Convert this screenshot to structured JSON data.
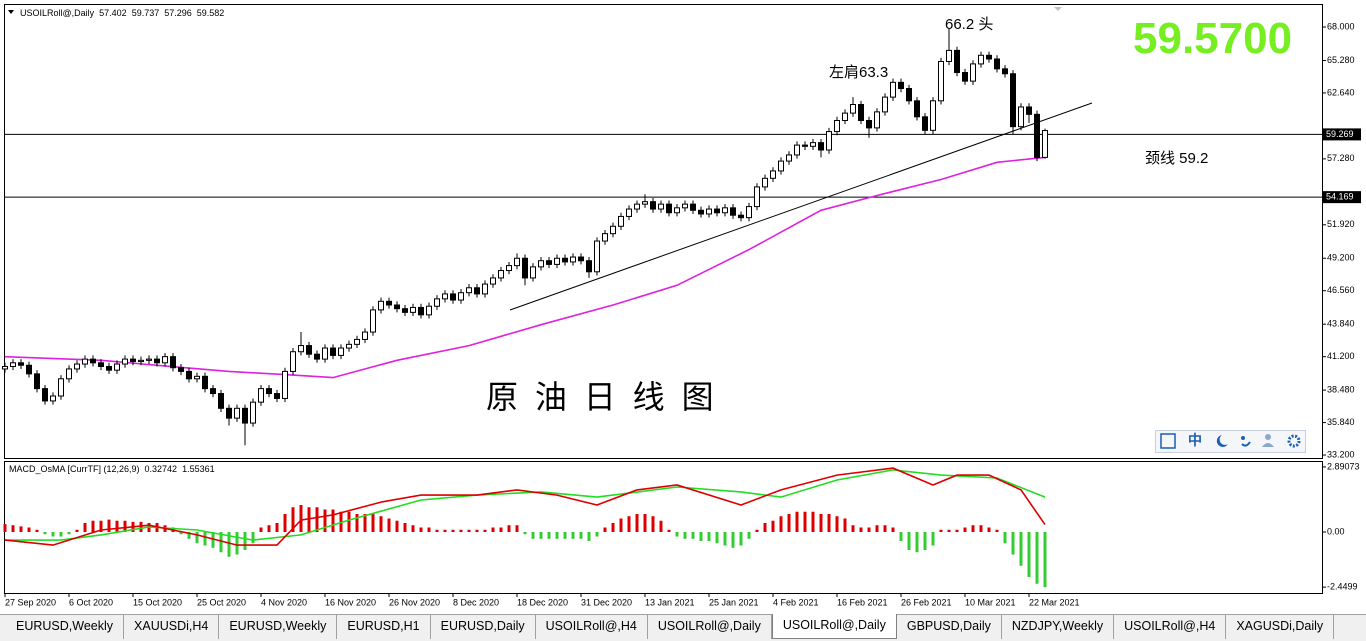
{
  "chart_data": [
    {
      "type": "candlestick",
      "symbol_label": "USOILRoll@,Daily",
      "bid": "59.5700",
      "annotations": [
        "66.2 头",
        "左肩63.3",
        "颈线 59.2",
        "原 油 日 线 图"
      ],
      "toolbar_lang": "中",
      "up_color": "#ffffff",
      "down_color": "#000000",
      "wick_color": "#000000",
      "open": [
        40.2,
        40.4,
        40.7,
        40.5,
        39.8,
        38.6,
        37.6,
        38.0,
        39.4,
        40.2,
        40.6,
        41.0,
        40.7,
        40.4,
        40.1,
        40.6,
        41.0,
        40.8,
        40.9,
        41.0,
        40.7,
        41.2,
        40.3,
        40.0,
        39.4,
        39.6,
        38.6,
        38.2,
        37.0,
        36.2,
        37.0,
        35.8,
        37.5,
        38.6,
        38.2,
        37.8,
        40.0,
        41.6,
        42.1,
        41.4,
        41.0,
        41.9,
        41.3,
        41.9,
        42.2,
        42.6,
        43.2,
        45.0,
        45.7,
        45.4,
        45.1,
        44.8,
        45.2,
        44.6,
        45.3,
        45.9,
        46.3,
        45.8,
        46.4,
        46.8,
        46.3,
        47.1,
        47.6,
        48.2,
        48.6,
        49.2,
        47.6,
        48.5,
        49.0,
        48.7,
        49.2,
        48.9,
        49.3,
        49.0,
        48.1,
        50.6,
        51.2,
        51.8,
        52.6,
        53.2,
        53.6,
        53.8,
        53.2,
        53.6,
        52.9,
        53.3,
        53.6,
        53.1,
        52.8,
        53.2,
        52.9,
        53.3,
        52.7,
        52.5,
        53.4,
        55.0,
        55.7,
        56.3,
        57.1,
        57.6,
        58.4,
        58.3,
        58.6,
        58.0,
        59.5,
        60.4,
        61.0,
        61.7,
        60.4,
        59.8,
        61.1,
        62.3,
        63.5,
        63.0,
        62.0,
        60.7,
        59.6,
        62.0,
        65.2,
        66.1,
        64.3,
        63.6,
        65.0,
        65.7,
        65.4,
        64.6,
        64.2,
        59.9,
        61.5,
        60.9,
        57.402
      ],
      "high": [
        40.7,
        41.0,
        41.0,
        40.8,
        40.1,
        38.9,
        38.3,
        39.7,
        40.5,
        40.9,
        41.3,
        41.3,
        41.0,
        40.7,
        40.9,
        41.3,
        41.3,
        41.2,
        41.3,
        41.3,
        41.5,
        41.5,
        40.6,
        40.3,
        39.9,
        39.9,
        38.9,
        38.5,
        37.3,
        37.3,
        37.3,
        37.8,
        38.9,
        38.9,
        38.5,
        40.3,
        41.9,
        43.2,
        42.4,
        41.7,
        42.2,
        42.2,
        42.2,
        42.5,
        42.9,
        43.5,
        45.3,
        46.0,
        46.0,
        45.7,
        45.4,
        45.5,
        45.5,
        45.6,
        46.2,
        46.6,
        46.6,
        46.7,
        47.1,
        47.1,
        47.4,
        47.9,
        48.5,
        48.9,
        49.6,
        49.5,
        48.8,
        49.3,
        49.3,
        49.5,
        49.5,
        49.6,
        49.6,
        49.3,
        50.9,
        51.5,
        52.1,
        52.9,
        53.5,
        53.9,
        54.4,
        54.1,
        53.9,
        53.9,
        53.6,
        53.9,
        53.9,
        53.4,
        53.5,
        53.5,
        53.6,
        53.6,
        53.0,
        53.7,
        55.3,
        56.0,
        56.6,
        57.4,
        57.9,
        58.7,
        58.7,
        58.9,
        58.9,
        59.8,
        60.7,
        61.3,
        62.3,
        62.0,
        60.7,
        61.4,
        62.6,
        63.8,
        63.8,
        63.3,
        62.3,
        61.0,
        62.3,
        65.5,
        67.9,
        66.4,
        64.6,
        65.3,
        66.0,
        66.0,
        65.7,
        64.9,
        64.5,
        61.8,
        61.8,
        61.2,
        59.737
      ],
      "low": [
        39.9,
        40.1,
        40.2,
        39.5,
        38.3,
        37.3,
        37.3,
        37.7,
        39.1,
        39.9,
        40.3,
        40.4,
        40.1,
        39.8,
        39.8,
        40.3,
        40.5,
        40.5,
        40.6,
        40.4,
        40.4,
        40.0,
        39.7,
        39.1,
        39.1,
        38.3,
        37.9,
        36.7,
        35.6,
        35.9,
        34.0,
        35.5,
        37.2,
        37.9,
        37.5,
        37.5,
        39.7,
        41.3,
        41.1,
        40.7,
        40.7,
        41.0,
        41.0,
        41.6,
        41.9,
        42.3,
        42.9,
        44.7,
        45.1,
        44.8,
        44.5,
        44.5,
        44.3,
        44.3,
        45.0,
        45.6,
        45.5,
        45.5,
        46.1,
        46.0,
        46.0,
        46.8,
        47.3,
        47.9,
        48.3,
        47.0,
        47.3,
        48.2,
        48.4,
        48.4,
        48.6,
        48.6,
        48.7,
        47.6,
        47.8,
        50.3,
        50.9,
        51.5,
        52.3,
        52.9,
        53.3,
        52.9,
        52.9,
        52.6,
        52.6,
        53.0,
        52.8,
        52.5,
        52.5,
        52.6,
        52.6,
        52.4,
        52.2,
        52.2,
        53.1,
        54.7,
        55.4,
        56.0,
        56.8,
        57.3,
        58.0,
        58.0,
        57.4,
        57.7,
        59.2,
        60.1,
        60.7,
        60.1,
        59.0,
        59.5,
        60.8,
        62.0,
        62.7,
        61.7,
        60.4,
        59.3,
        59.3,
        61.7,
        64.9,
        64.0,
        63.3,
        63.3,
        64.7,
        65.1,
        64.3,
        63.9,
        59.3,
        59.6,
        60.2,
        57.1,
        57.296
      ],
      "close": [
        40.4,
        40.7,
        40.5,
        39.8,
        38.6,
        37.6,
        38.0,
        39.4,
        40.2,
        40.6,
        41.0,
        40.7,
        40.4,
        40.1,
        40.6,
        41.0,
        40.8,
        40.9,
        41.0,
        40.7,
        41.2,
        40.3,
        40.0,
        39.4,
        39.6,
        38.6,
        38.2,
        37.0,
        36.2,
        37.0,
        35.8,
        37.5,
        38.6,
        38.2,
        37.8,
        40.0,
        41.6,
        42.1,
        41.4,
        41.0,
        41.9,
        41.3,
        41.9,
        42.2,
        42.6,
        43.2,
        45.0,
        45.7,
        45.4,
        45.1,
        44.8,
        45.2,
        44.6,
        45.3,
        45.9,
        46.3,
        45.8,
        46.4,
        46.8,
        46.3,
        47.1,
        47.6,
        48.2,
        48.6,
        49.2,
        47.6,
        48.5,
        49.0,
        48.7,
        49.2,
        48.9,
        49.3,
        49.0,
        48.1,
        50.6,
        51.2,
        51.8,
        52.6,
        53.2,
        53.6,
        53.8,
        53.2,
        53.6,
        52.9,
        53.3,
        53.6,
        53.1,
        52.8,
        53.2,
        52.9,
        53.3,
        52.7,
        52.5,
        53.4,
        55.0,
        55.7,
        56.3,
        57.1,
        57.6,
        58.4,
        58.3,
        58.6,
        58.0,
        59.5,
        60.4,
        61.0,
        61.7,
        60.4,
        59.8,
        61.1,
        62.3,
        63.5,
        63.0,
        62.0,
        60.7,
        59.6,
        62.0,
        65.2,
        66.1,
        64.3,
        63.6,
        65.0,
        65.7,
        65.4,
        64.6,
        64.2,
        59.9,
        61.5,
        60.9,
        57.4,
        59.582
      ],
      "ma": {
        "color": "#e020e0",
        "x": [
          0,
          12,
          19,
          28,
          36,
          41,
          49,
          58,
          67,
          76,
          84,
          93,
          102,
          109,
          117,
          124,
          130
        ],
        "values": [
          41.2,
          40.9,
          40.5,
          40.0,
          39.7,
          39.5,
          40.9,
          42.1,
          43.8,
          45.4,
          47.0,
          49.9,
          53.1,
          54.3,
          55.6,
          57.0,
          57.4
        ]
      },
      "hlines": [
        59.269,
        54.169
      ],
      "xlim": [
        -0.625,
        164.625
      ],
      "xticks": [
        {
          "value": 0,
          "label": "27 Sep 2020"
        },
        {
          "value": 8,
          "label": "6 Oct 2020"
        },
        {
          "value": 16,
          "label": "15 Oct 2020"
        },
        {
          "value": 24,
          "label": "25 Oct 2020"
        },
        {
          "value": 32,
          "label": "4 Nov 2020"
        },
        {
          "value": 40,
          "label": "16 Nov 2020"
        },
        {
          "value": 48,
          "label": "26 Nov 2020"
        },
        {
          "value": 56,
          "label": "8 Dec 2020"
        },
        {
          "value": 64,
          "label": "18 Dec 2020"
        },
        {
          "value": 72,
          "label": "31 Dec 2020"
        },
        {
          "value": 80,
          "label": "13 Jan 2021"
        },
        {
          "value": 88,
          "label": "25 Jan 2021"
        },
        {
          "value": 96,
          "label": "4 Feb 2021"
        },
        {
          "value": 104,
          "label": "16 Feb 2021"
        },
        {
          "value": 112,
          "label": "26 Feb 2021"
        },
        {
          "value": 120,
          "label": "10 Mar 2021"
        },
        {
          "value": 128,
          "label": "22 Mar 2021"
        }
      ],
      "ylim": [
        32.96,
        69.79
      ],
      "yticks": [
        {
          "value": 68,
          "label": "68.000"
        },
        {
          "value": 65.28,
          "label": "65.280"
        },
        {
          "value": 62.64,
          "label": "62.640"
        },
        {
          "value": 57.28,
          "label": "57.280"
        },
        {
          "value": 51.92,
          "label": "51.920"
        },
        {
          "value": 49.2,
          "label": "49.200"
        },
        {
          "value": 46.56,
          "label": "46.560"
        },
        {
          "value": 43.84,
          "label": "43.840"
        },
        {
          "value": 41.2,
          "label": "41.200"
        },
        {
          "value": 38.48,
          "label": "38.480"
        },
        {
          "value": 35.84,
          "label": "35.840"
        },
        {
          "value": 33.2,
          "label": "33.200"
        }
      ]
    },
    {
      "type": "macd",
      "title": "MACD_OsMA [CurrTF] (12,26,9)",
      "readout": [
        0.32742,
        1.55361
      ],
      "pos_color": "#dd0000",
      "neg_color": "#33cc33",
      "histogram": [
        0.35,
        0.3,
        0.25,
        0.2,
        0.1,
        -0.1,
        -0.2,
        -0.2,
        -0.1,
        0.1,
        0.4,
        0.5,
        0.5,
        0.55,
        0.5,
        0.5,
        0.45,
        0.45,
        0.4,
        0.4,
        0.3,
        0.2,
        -0.1,
        -0.3,
        -0.5,
        -0.6,
        -0.7,
        -0.9,
        -1.1,
        -1.0,
        -0.8,
        -0.5,
        0.2,
        0.3,
        0.4,
        0.8,
        1.1,
        1.2,
        1.1,
        1.1,
        1.0,
        1.0,
        0.9,
        0.9,
        0.8,
        0.8,
        0.8,
        0.7,
        0.6,
        0.5,
        0.4,
        0.3,
        0.2,
        0.2,
        0.1,
        0.1,
        0.1,
        0.1,
        0.1,
        0.1,
        0.1,
        0.2,
        0.2,
        0.3,
        0.3,
        -0.1,
        -0.3,
        -0.3,
        -0.3,
        -0.3,
        -0.3,
        -0.3,
        -0.3,
        -0.4,
        -0.2,
        0.2,
        0.4,
        0.6,
        0.7,
        0.8,
        0.8,
        0.7,
        0.5,
        0.1,
        -0.2,
        -0.3,
        -0.3,
        -0.4,
        -0.4,
        -0.5,
        -0.6,
        -0.7,
        -0.6,
        -0.3,
        0.1,
        0.4,
        0.5,
        0.7,
        0.8,
        0.9,
        0.9,
        0.9,
        0.8,
        0.8,
        0.7,
        0.6,
        0.3,
        0.2,
        0.2,
        0.3,
        0.3,
        0.2,
        -0.4,
        -0.8,
        -0.9,
        -0.8,
        -0.6,
        0.1,
        0.1,
        0.1,
        0.2,
        0.3,
        0.3,
        0.2,
        0.1,
        -0.5,
        -1.0,
        -1.5,
        -2.0,
        -2.3,
        -2.45
      ],
      "main": {
        "color": "#dd0000",
        "x": [
          0,
          6,
          12,
          18,
          24,
          29,
          34,
          37,
          41,
          47,
          52,
          59,
          64,
          69,
          74,
          79,
          84,
          92,
          97,
          104,
          111,
          116,
          119,
          123,
          127,
          130
        ],
        "values": [
          -0.36,
          -0.58,
          0.09,
          0.3,
          -0.13,
          -0.58,
          -0.58,
          0.53,
          0.76,
          1.33,
          1.64,
          1.64,
          1.87,
          1.64,
          1.2,
          1.87,
          2.09,
          1.2,
          1.87,
          2.53,
          2.84,
          2.09,
          2.53,
          2.53,
          1.87,
          0.33
        ]
      },
      "signal": {
        "color": "#22dd22",
        "x": [
          0,
          7,
          12,
          18,
          24,
          31,
          37,
          43,
          52,
          59,
          67,
          74,
          84,
          92,
          97,
          104,
          111,
          117,
          124,
          130
        ],
        "values": [
          -0.36,
          -0.36,
          -0.13,
          0.22,
          0.09,
          -0.36,
          -0.13,
          0.53,
          1.42,
          1.64,
          1.78,
          1.55,
          2.0,
          1.78,
          1.55,
          2.31,
          2.76,
          2.53,
          2.4,
          1.55
        ]
      },
      "ylim": [
        -2.71,
        3.11
      ],
      "yticks": [
        2.89073,
        {
          "value": 0,
          "label": "0.00"
        },
        -2.4499
      ]
    }
  ],
  "tabs": [
    "EURUSD,Weekly",
    "XAUUSDi,H4",
    "EURUSD,Weekly",
    "EURUSD,H1",
    "EURUSD,Daily",
    "USOILRoll@,H4",
    "USOILRoll@,Daily",
    "USOILRoll@,Daily",
    "GBPUSD,Daily",
    "NZDJPY,Weekly",
    "USOILRoll@,H4",
    "XAGUSDi,Daily"
  ]
}
